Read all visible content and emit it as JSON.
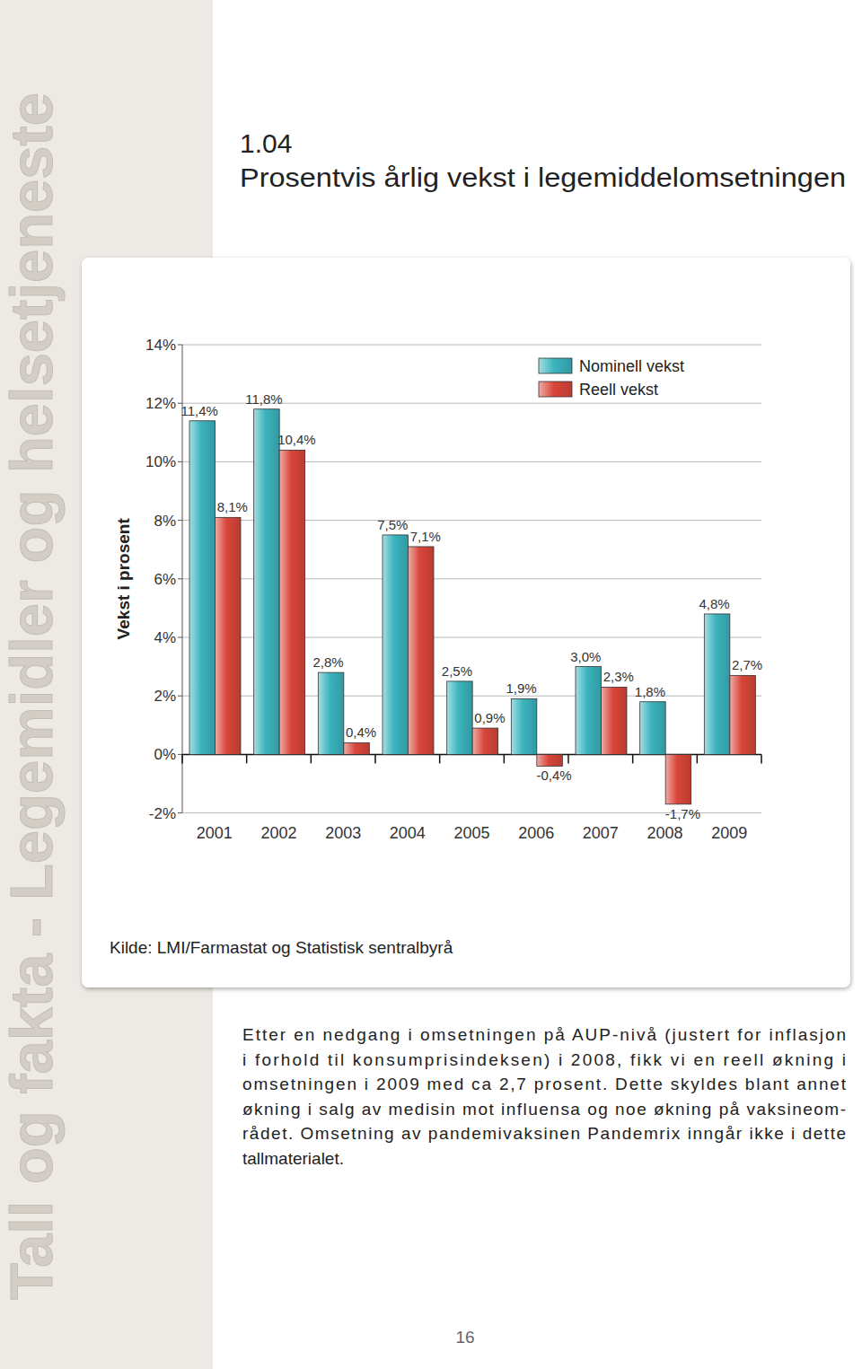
{
  "page": {
    "sidebar": "Tall og fakta - Legemidler og helsetjeneste",
    "figure_number": "1.04",
    "source": "Kilde: LMI/Farmastat og Statistisk sentralbyrå",
    "body": [
      "Etter en nedgang  i omsetningen på AUP-nivå (justert for inflasjon",
      "i forhold til konsumprisindeksen) i 2008, fikk vi en reell økning  i",
      "omsetningen i 2009 med ca 2,7 prosent. Dette skyldes blant annet",
      "økning i salg av medisin mot influensa og noe økning på vaksineom-",
      "rådet. Omsetning av pandemivaksinen Pandemrix inngår ikke i dette",
      "tallmaterialet."
    ],
    "page_number": 16
  },
  "chart_data": {
    "type": "bar",
    "title": "Prosentvis årlig vekst i legemiddelomsetningen",
    "y_label": "Vekst i prosent",
    "categories": [
      "2001",
      "2002",
      "2003",
      "2004",
      "2005",
      "2006",
      "2007",
      "2008",
      "2009"
    ],
    "series": [
      {
        "name": "Nominell vekst",
        "color": "#3bb4be",
        "values": [
          11.4,
          11.8,
          2.8,
          7.5,
          2.5,
          1.9,
          3.0,
          1.8,
          4.8
        ],
        "value_labels": [
          "11,4%",
          "11,8%",
          "2,8%",
          "7,5%",
          "2,5%",
          "1,9%",
          "3,0%",
          "1,8%",
          "4,8%"
        ]
      },
      {
        "name": "Reell vekst",
        "color": "#d9463a",
        "values": [
          8.1,
          10.4,
          0.4,
          7.1,
          0.9,
          -0.4,
          2.3,
          -1.7,
          2.7
        ],
        "value_labels": [
          "8,1%",
          "10,4%",
          "0,4%",
          "7,1%",
          "0,9%",
          "-0,4%",
          "2,3%",
          "-1,7%",
          "2,7%"
        ]
      }
    ],
    "ylim": [
      -2,
      14
    ],
    "yticks": [
      {
        "value": -2,
        "label": "-2%"
      },
      {
        "value": 0,
        "label": "0%"
      },
      {
        "value": 2,
        "label": "2%"
      },
      {
        "value": 4,
        "label": "4%"
      },
      {
        "value": 6,
        "label": "6%"
      },
      {
        "value": 8,
        "label": "8%"
      },
      {
        "value": 10,
        "label": "10%"
      },
      {
        "value": 12,
        "label": "12%"
      },
      {
        "value": 14,
        "label": "14%"
      }
    ],
    "grid": true,
    "legend": "top-right",
    "data_labels": true
  }
}
